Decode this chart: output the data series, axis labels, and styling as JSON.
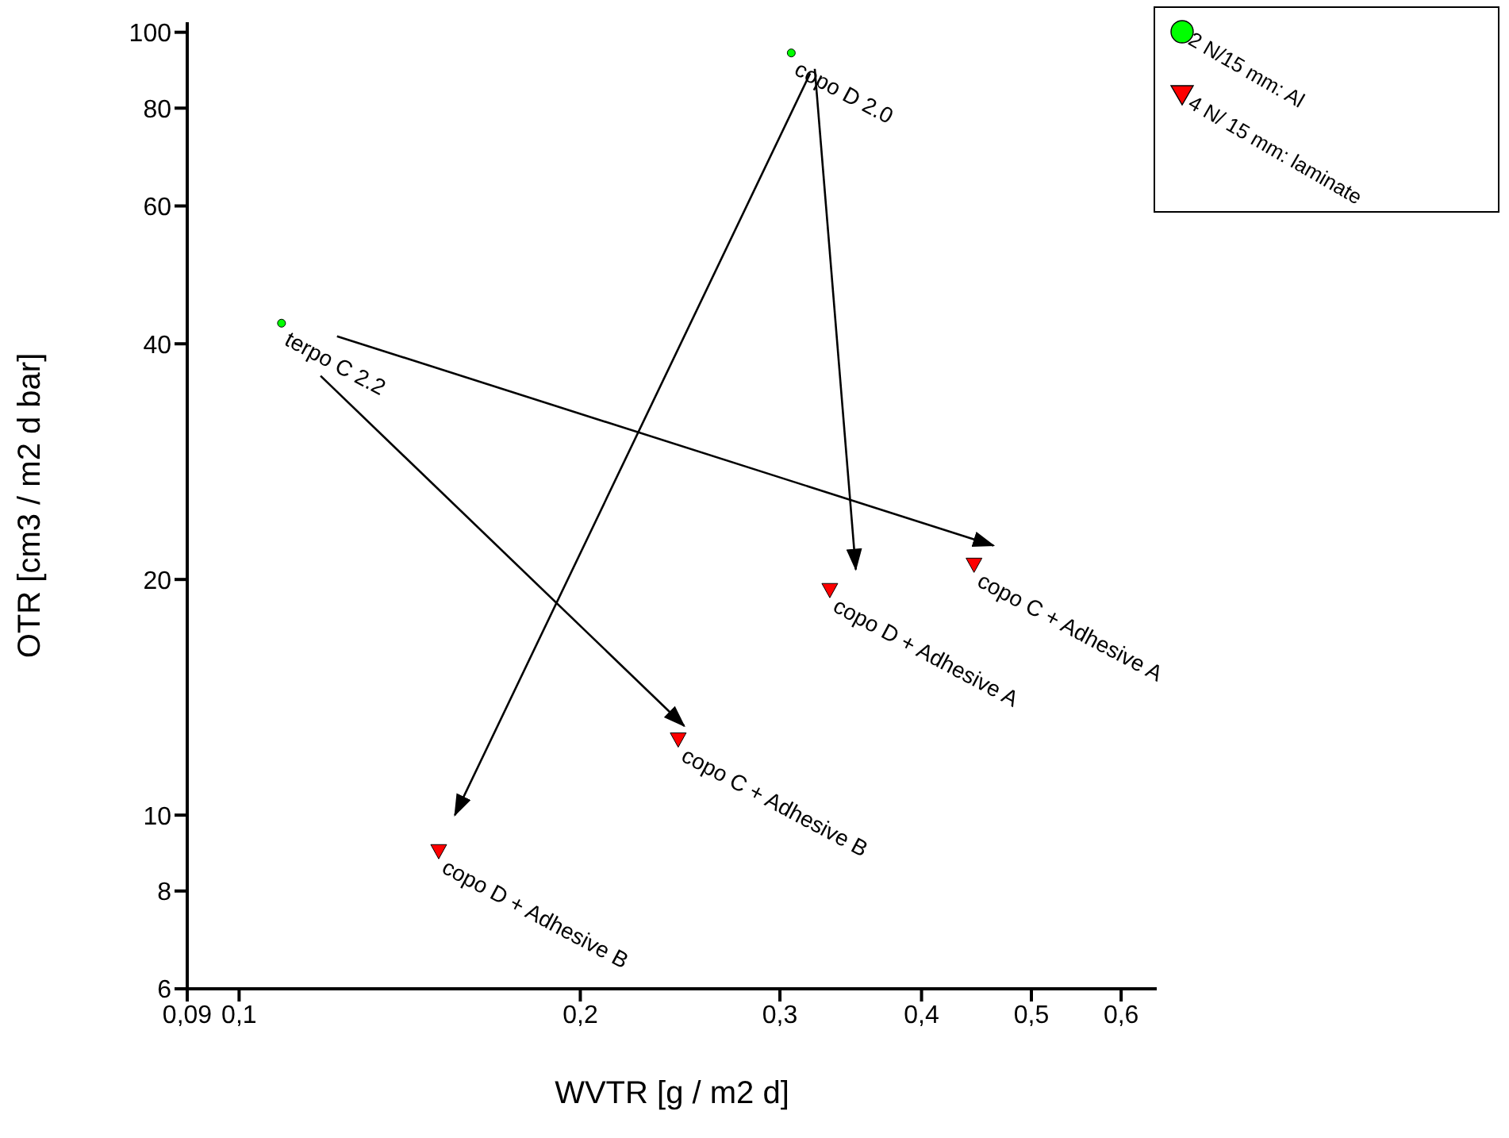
{
  "chart_data": {
    "type": "scatter",
    "xlabel": "WVTR [g / m2 d]",
    "ylabel": "OTR [cm3 / m2 d bar]",
    "log": "xy",
    "grid": false,
    "legend": "top right",
    "xlim": [
      0.09,
      0.645
    ],
    "ylim": [
      6,
      103
    ],
    "xticks": [
      {
        "value": 0.09,
        "label": "0,09"
      },
      {
        "value": 0.1,
        "label": "0,1"
      },
      {
        "value": 0.2,
        "label": "0,2"
      },
      {
        "value": 0.3,
        "label": "0,3"
      },
      {
        "value": 0.4,
        "label": "0,4"
      },
      {
        "value": 0.5,
        "label": "0,5"
      },
      {
        "value": 0.6,
        "label": "0,6"
      }
    ],
    "yticks": [
      6,
      8,
      10,
      20,
      40,
      60,
      80,
      100
    ],
    "series": [
      {
        "name": "2 N/15 mm: Al",
        "marker": "circle",
        "color": "#00ff00",
        "x": [
          0.307,
          0.109
        ],
        "values": [
          94.1,
          42.5
        ]
      },
      {
        "name": "4 N/ 15 mm: laminate",
        "marker": "triangle",
        "color": "#ff0000",
        "x": [
          0.332,
          0.445,
          0.244,
          0.15
        ],
        "values": [
          19.4,
          20.9,
          12.5,
          9.0
        ]
      },
      {
        "type": "line",
        "marker": "none",
        "color": "#000000",
        "x": [
          0.322,
          0.35
        ],
        "values": [
          89.8,
          20.6
        ]
      },
      {
        "type": "line",
        "marker": "none",
        "color": "#000000",
        "x": [
          0.319,
          0.155
        ],
        "values": [
          88.6,
          10.0
        ]
      },
      {
        "type": "line",
        "marker": "none",
        "color": "#000000",
        "x": [
          0.122,
          0.463
        ],
        "values": [
          40.9,
          22.1
        ]
      },
      {
        "type": "line",
        "marker": "none",
        "color": "#000000",
        "x": [
          0.118,
          0.247
        ],
        "values": [
          36.4,
          13.0
        ]
      }
    ],
    "annotations": [
      {
        "text": "copo D 2.0",
        "x": 0.307,
        "y": 94.1
      },
      {
        "text": "terpo C 2.2",
        "x": 0.109,
        "y": 42.5
      },
      {
        "text": "copo D + Adhesive A",
        "x": 0.332,
        "y": 19.4
      },
      {
        "text": "copo C + Adhesive A",
        "x": 0.445,
        "y": 20.9
      },
      {
        "text": "copo C + Adhesive B",
        "x": 0.244,
        "y": 12.5
      },
      {
        "text": "copo D + Adhesive B",
        "x": 0.15,
        "y": 9.0
      }
    ]
  }
}
